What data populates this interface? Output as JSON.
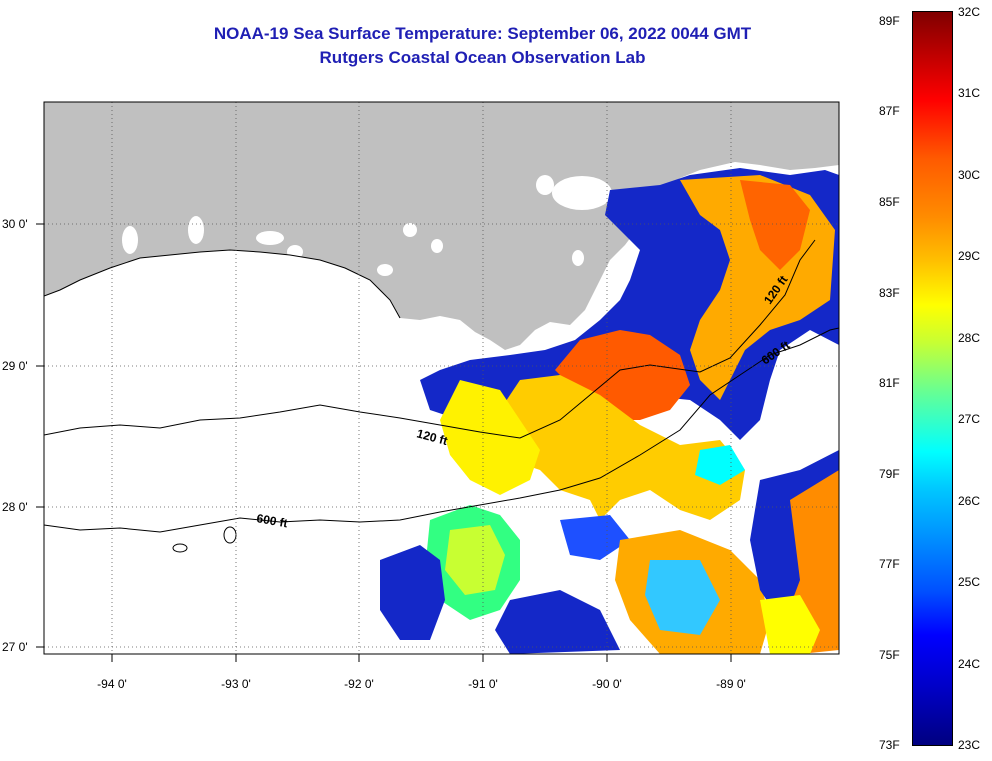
{
  "header": {
    "title": "NOAA-19 Sea Surface Temperature:  September 06, 2022 0044 GMT",
    "subtitle": "Rutgers Coastal Ocean Observation Lab"
  },
  "map": {
    "lat_labels": [
      "30 0'",
      "29 0'",
      "28 0'",
      "27 0'"
    ],
    "lon_labels": [
      "-94 0'",
      "-93 0'",
      "-92 0'",
      "-91 0'",
      "-90 0'",
      "-89 0'"
    ],
    "contour_labels": [
      "120 ft",
      "600 ft",
      "120 ft",
      "600 ft"
    ],
    "colors": {
      "land": "#c0c0c0",
      "water_nodata": "#ffffff",
      "title": "#1f1fb4"
    }
  },
  "colorbar": {
    "fahrenheit": [
      "89F",
      "87F",
      "85F",
      "83F",
      "81F",
      "79F",
      "77F",
      "75F",
      "73F"
    ],
    "celsius": [
      "32C",
      "31C",
      "30C",
      "29C",
      "28C",
      "27C",
      "26C",
      "25C",
      "24C",
      "23C"
    ]
  }
}
